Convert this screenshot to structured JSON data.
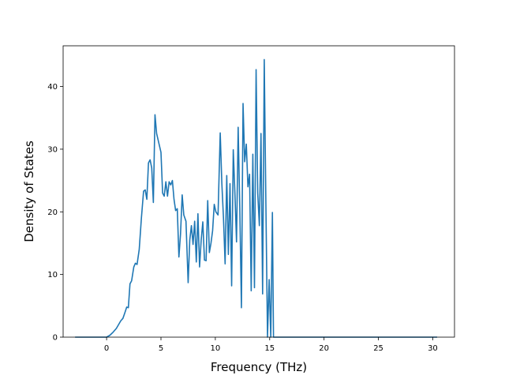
{
  "chart_data": {
    "type": "line",
    "title": "",
    "xlabel": "Frequency (THz)",
    "ylabel": "Density of States",
    "xlim": [
      -4.0,
      32.0
    ],
    "ylim": [
      0,
      46.5
    ],
    "xticks": [
      0,
      5,
      10,
      15,
      20,
      25,
      30
    ],
    "yticks": [
      0,
      10,
      20,
      30,
      40
    ],
    "grid": false,
    "legend": "none",
    "line_color": "#1f77b4",
    "series": [
      {
        "name": "",
        "points": [
          [
            -2.9,
            0
          ],
          [
            0.0,
            0
          ],
          [
            0.3,
            0.3
          ],
          [
            0.6,
            0.8
          ],
          [
            0.9,
            1.4
          ],
          [
            1.1,
            2.0
          ],
          [
            1.3,
            2.6
          ],
          [
            1.5,
            3.0
          ],
          [
            1.7,
            4.0
          ],
          [
            1.85,
            4.8
          ],
          [
            2.0,
            4.7
          ],
          [
            2.15,
            8.5
          ],
          [
            2.3,
            9.0
          ],
          [
            2.5,
            11.2
          ],
          [
            2.65,
            11.8
          ],
          [
            2.8,
            11.6
          ],
          [
            3.0,
            14.0
          ],
          [
            3.2,
            19.0
          ],
          [
            3.4,
            23.3
          ],
          [
            3.55,
            23.5
          ],
          [
            3.7,
            22.0
          ],
          [
            3.85,
            27.8
          ],
          [
            4.0,
            28.3
          ],
          [
            4.15,
            27.0
          ],
          [
            4.3,
            21.5
          ],
          [
            4.45,
            35.5
          ],
          [
            4.6,
            32.5
          ],
          [
            4.8,
            31.0
          ],
          [
            5.0,
            29.5
          ],
          [
            5.15,
            23.0
          ],
          [
            5.3,
            22.5
          ],
          [
            5.45,
            24.8
          ],
          [
            5.6,
            22.5
          ],
          [
            5.75,
            24.8
          ],
          [
            5.9,
            24.3
          ],
          [
            6.05,
            25.0
          ],
          [
            6.2,
            22.0
          ],
          [
            6.35,
            20.2
          ],
          [
            6.5,
            20.5
          ],
          [
            6.65,
            12.8
          ],
          [
            6.8,
            16.5
          ],
          [
            6.95,
            22.7
          ],
          [
            7.1,
            19.5
          ],
          [
            7.3,
            18.5
          ],
          [
            7.5,
            8.7
          ],
          [
            7.65,
            15.5
          ],
          [
            7.8,
            17.8
          ],
          [
            7.95,
            14.8
          ],
          [
            8.1,
            18.5
          ],
          [
            8.25,
            12.0
          ],
          [
            8.4,
            19.7
          ],
          [
            8.55,
            11.2
          ],
          [
            8.7,
            15.5
          ],
          [
            8.85,
            18.4
          ],
          [
            9.0,
            12.3
          ],
          [
            9.15,
            12.2
          ],
          [
            9.3,
            21.8
          ],
          [
            9.45,
            13.5
          ],
          [
            9.6,
            15.0
          ],
          [
            9.75,
            17.0
          ],
          [
            9.9,
            21.2
          ],
          [
            10.05,
            20.0
          ],
          [
            10.25,
            19.5
          ],
          [
            10.45,
            32.6
          ],
          [
            10.6,
            24.5
          ],
          [
            10.75,
            19.0
          ],
          [
            10.9,
            11.7
          ],
          [
            11.05,
            25.8
          ],
          [
            11.2,
            13.2
          ],
          [
            11.35,
            24.5
          ],
          [
            11.5,
            8.2
          ],
          [
            11.65,
            29.9
          ],
          [
            11.8,
            23.0
          ],
          [
            11.95,
            15.2
          ],
          [
            12.1,
            33.5
          ],
          [
            12.25,
            20.7
          ],
          [
            12.4,
            4.7
          ],
          [
            12.55,
            37.3
          ],
          [
            12.7,
            28.0
          ],
          [
            12.85,
            30.8
          ],
          [
            13.0,
            24.0
          ],
          [
            13.15,
            26.0
          ],
          [
            13.3,
            7.4
          ],
          [
            13.45,
            29.2
          ],
          [
            13.6,
            7.9
          ],
          [
            13.75,
            42.7
          ],
          [
            13.9,
            23.0
          ],
          [
            14.05,
            17.8
          ],
          [
            14.2,
            32.5
          ],
          [
            14.35,
            6.9
          ],
          [
            14.5,
            44.3
          ],
          [
            14.65,
            21.3
          ],
          [
            14.8,
            0
          ],
          [
            14.95,
            9.2
          ],
          [
            15.1,
            0
          ],
          [
            15.25,
            19.9
          ],
          [
            15.35,
            0
          ],
          [
            30.4,
            0
          ]
        ]
      }
    ]
  }
}
